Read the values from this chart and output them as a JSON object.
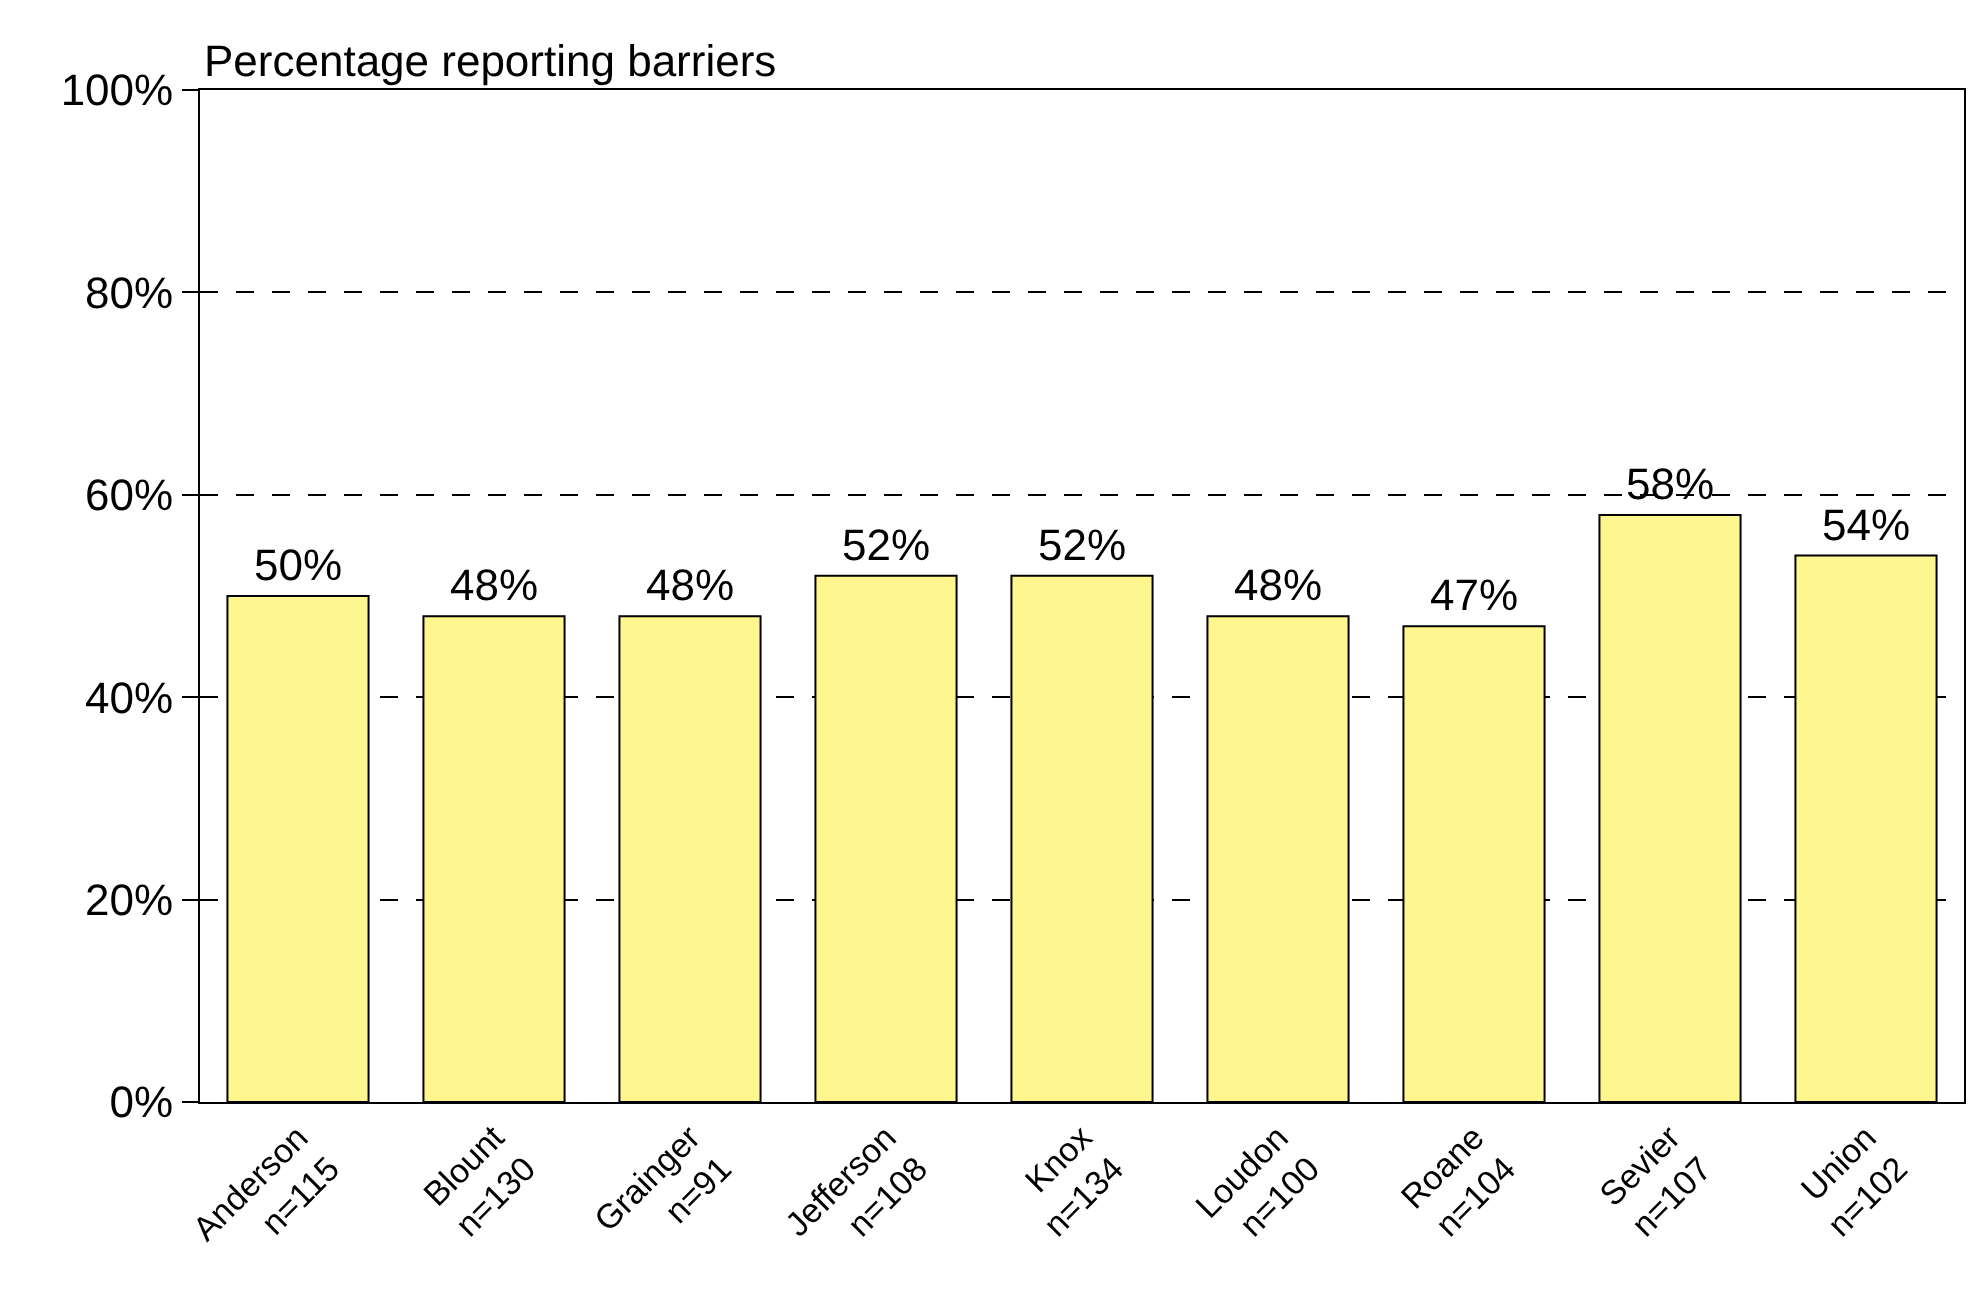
{
  "chart_data": {
    "type": "bar",
    "ylabel": "Percentage reporting barriers",
    "categories": [
      "Anderson\nn=115",
      "Blount\nn=130",
      "Grainger\nn=91",
      "Jefferson\nn=108",
      "Knox\nn=134",
      "Loudon\nn=100",
      "Roane\nn=104",
      "Sevier\nn=107",
      "Union\nn=102"
    ],
    "values": [
      50,
      48,
      48,
      52,
      52,
      48,
      47,
      58,
      54
    ],
    "color": "#fff68f",
    "value_labels": [
      "50%",
      "48%",
      "48%",
      "52%",
      "52%",
      "48%",
      "47%",
      "58%",
      "54%"
    ],
    "ylim": [
      0,
      100
    ],
    "yticks": [
      {
        "value": 0,
        "label": "0%"
      },
      {
        "value": 20,
        "label": "20%"
      },
      {
        "value": 40,
        "label": "40%"
      },
      {
        "value": 60,
        "label": "60%"
      },
      {
        "value": 80,
        "label": "80%"
      },
      {
        "value": 100,
        "label": "100%"
      }
    ],
    "grid": "y",
    "legend": false
  }
}
